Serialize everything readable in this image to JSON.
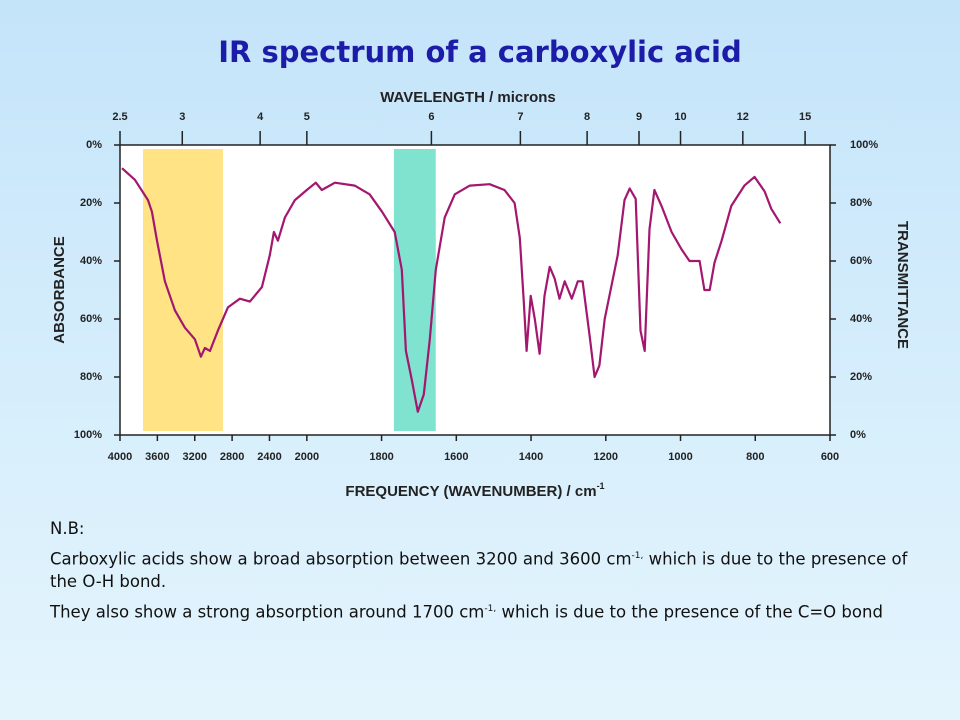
{
  "chart_data": {
    "type": "line",
    "title": "IR spectrum of a carboxylic acid",
    "x_label": {
      "text": "FREQUENCY (WAVENUMBER) / cm",
      "superscript": "-1"
    },
    "x2_label": "WAVELENGTH / microns",
    "y_label": "ABSORBANCE",
    "y2_label": "TRANSMITTANCE",
    "xlim": [
      4000,
      600
    ],
    "xticks": [
      4000,
      3600,
      3200,
      2800,
      2400,
      2000,
      1800,
      1600,
      1400,
      1200,
      1000,
      800,
      600
    ],
    "x2ticks": [
      2.5,
      3,
      4,
      5,
      6,
      7,
      8,
      9,
      10,
      12,
      15
    ],
    "ylim": [
      100,
      0
    ],
    "yticks": [
      {
        "value": 0,
        "label": "0%"
      },
      {
        "value": 20,
        "label": "20%"
      },
      {
        "value": 40,
        "label": "40%"
      },
      {
        "value": 60,
        "label": "60%"
      },
      {
        "value": 80,
        "label": "80%"
      },
      {
        "value": 100,
        "label": "100%"
      }
    ],
    "y2lim": [
      0,
      100
    ],
    "y2ticks": [
      {
        "value": 100,
        "label": "100%"
      },
      {
        "value": 80,
        "label": "80%"
      },
      {
        "value": 60,
        "label": "60%"
      },
      {
        "value": 40,
        "label": "40%"
      },
      {
        "value": 20,
        "label": "20%"
      },
      {
        "value": 0,
        "label": "0%"
      }
    ],
    "bands": [
      {
        "from": 3754,
        "to": 2898,
        "color": "#ffe385"
      },
      {
        "from": 1767,
        "to": 1655,
        "color": "#80e3cf"
      }
    ],
    "x": [
      3979,
      3840,
      3700,
      3658,
      3604,
      3519,
      3412,
      3305,
      3198,
      3134,
      3091,
      3037,
      2952,
      2845,
      2717,
      2610,
      2481,
      2396,
      2353,
      2310,
      2235,
      2128,
      2000,
      1976,
      1960,
      1925,
      1872,
      1832,
      1799,
      1765,
      1746,
      1735,
      1719,
      1703,
      1687,
      1671,
      1655,
      1631,
      1604,
      1564,
      1511,
      1471,
      1444,
      1430,
      1420,
      1412,
      1401,
      1390,
      1377,
      1364,
      1350,
      1337,
      1324,
      1310,
      1291,
      1275,
      1262,
      1243,
      1230,
      1217,
      1203,
      1184,
      1168,
      1150,
      1136,
      1120,
      1107,
      1096,
      1083,
      1070,
      1051,
      1024,
      997,
      976,
      949,
      936,
      922,
      909,
      890,
      864,
      829,
      802,
      775,
      757,
      733
    ],
    "series": [
      {
        "color": "#a3176f",
        "values": [
          8,
          12,
          19,
          23,
          33,
          47,
          57,
          63,
          67,
          73,
          70,
          71,
          64,
          56,
          53,
          54,
          49,
          38,
          30,
          33,
          25,
          19,
          15.5,
          13,
          15.5,
          13,
          14,
          17,
          23,
          30,
          43,
          71,
          81,
          92,
          86,
          67,
          43,
          25,
          17,
          14,
          13.5,
          15.5,
          20,
          32,
          53,
          71,
          52,
          60,
          72,
          52,
          42,
          46,
          53,
          47,
          53,
          47,
          47,
          66,
          80,
          76,
          60,
          48,
          38,
          19,
          15,
          18.6,
          64,
          71,
          29,
          15.5,
          21,
          30,
          36,
          40,
          40,
          50,
          50,
          40.6,
          33,
          21,
          14,
          11,
          16,
          22,
          27
        ]
      }
    ]
  },
  "notes": {
    "heading": "N.B:",
    "paragraphs": [
      {
        "before": "Carboxylic acids show a broad absorption between 3200 and 3600 cm",
        "sup": "-1,",
        "after": " which is due to the presence of the O-H bond."
      },
      {
        "before": "They also show a strong absorption around 1700 cm",
        "sup": "-1,",
        "after": " which is due to the presence of the C=O bond"
      }
    ]
  }
}
